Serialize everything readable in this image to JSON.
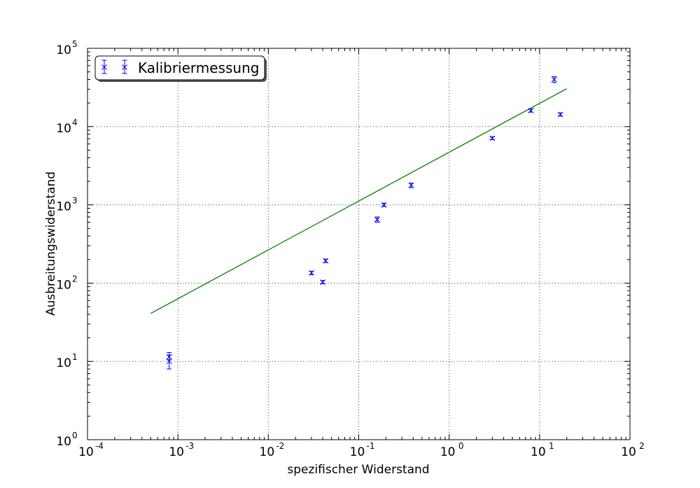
{
  "chart_data": {
    "type": "scatter",
    "title": "",
    "xlabel": "spezifischer Widerstand",
    "ylabel": "Ausbreitungswiderstand",
    "xscale": "log",
    "yscale": "log",
    "xlim": [
      0.0001,
      100
    ],
    "ylim": [
      1,
      100000
    ],
    "grid": true,
    "legend_position": "top-left",
    "x_tick_values": [
      0.0001,
      0.001,
      0.01,
      0.1,
      1,
      10,
      100
    ],
    "x_ticks": [
      {
        "base": "10",
        "exp": "-4"
      },
      {
        "base": "10",
        "exp": "-3"
      },
      {
        "base": "10",
        "exp": "-2"
      },
      {
        "base": "10",
        "exp": "-1"
      },
      {
        "base": "10",
        "exp": "0"
      },
      {
        "base": "10",
        "exp": "1"
      },
      {
        "base": "10",
        "exp": "2"
      }
    ],
    "y_tick_values": [
      1,
      10,
      100,
      1000,
      10000,
      100000
    ],
    "y_ticks": [
      {
        "base": "10",
        "exp": "0"
      },
      {
        "base": "10",
        "exp": "1"
      },
      {
        "base": "10",
        "exp": "2"
      },
      {
        "base": "10",
        "exp": "3"
      },
      {
        "base": "10",
        "exp": "4"
      },
      {
        "base": "10",
        "exp": "5"
      }
    ],
    "series": [
      {
        "name": "Kalibriermessung",
        "kind": "errorbar",
        "color": "#0000ff",
        "marker": "x",
        "points": [
          {
            "x": 0.0008,
            "y": 10,
            "yerr_low": 8,
            "yerr_high": 12
          },
          {
            "x": 0.0008,
            "y": 11.5,
            "yerr_low": 10.5,
            "yerr_high": 13
          },
          {
            "x": 0.03,
            "y": 135,
            "yerr_low": 128,
            "yerr_high": 142
          },
          {
            "x": 0.04,
            "y": 103,
            "yerr_low": 98,
            "yerr_high": 108
          },
          {
            "x": 0.043,
            "y": 193,
            "yerr_low": 183,
            "yerr_high": 203
          },
          {
            "x": 0.16,
            "y": 650,
            "yerr_low": 600,
            "yerr_high": 700
          },
          {
            "x": 0.19,
            "y": 1000,
            "yerr_low": 950,
            "yerr_high": 1050
          },
          {
            "x": 0.38,
            "y": 1780,
            "yerr_low": 1660,
            "yerr_high": 1900
          },
          {
            "x": 3.0,
            "y": 7100,
            "yerr_low": 6800,
            "yerr_high": 7400
          },
          {
            "x": 8.0,
            "y": 16000,
            "yerr_low": 15300,
            "yerr_high": 16700
          },
          {
            "x": 14.5,
            "y": 40000,
            "yerr_low": 36500,
            "yerr_high": 43500
          },
          {
            "x": 17.0,
            "y": 14300,
            "yerr_low": 13600,
            "yerr_high": 15000
          }
        ]
      },
      {
        "kind": "line",
        "color": "#008000",
        "points": [
          {
            "x": 0.0005,
            "y": 41
          },
          {
            "x": 20,
            "y": 30500
          }
        ]
      }
    ]
  }
}
